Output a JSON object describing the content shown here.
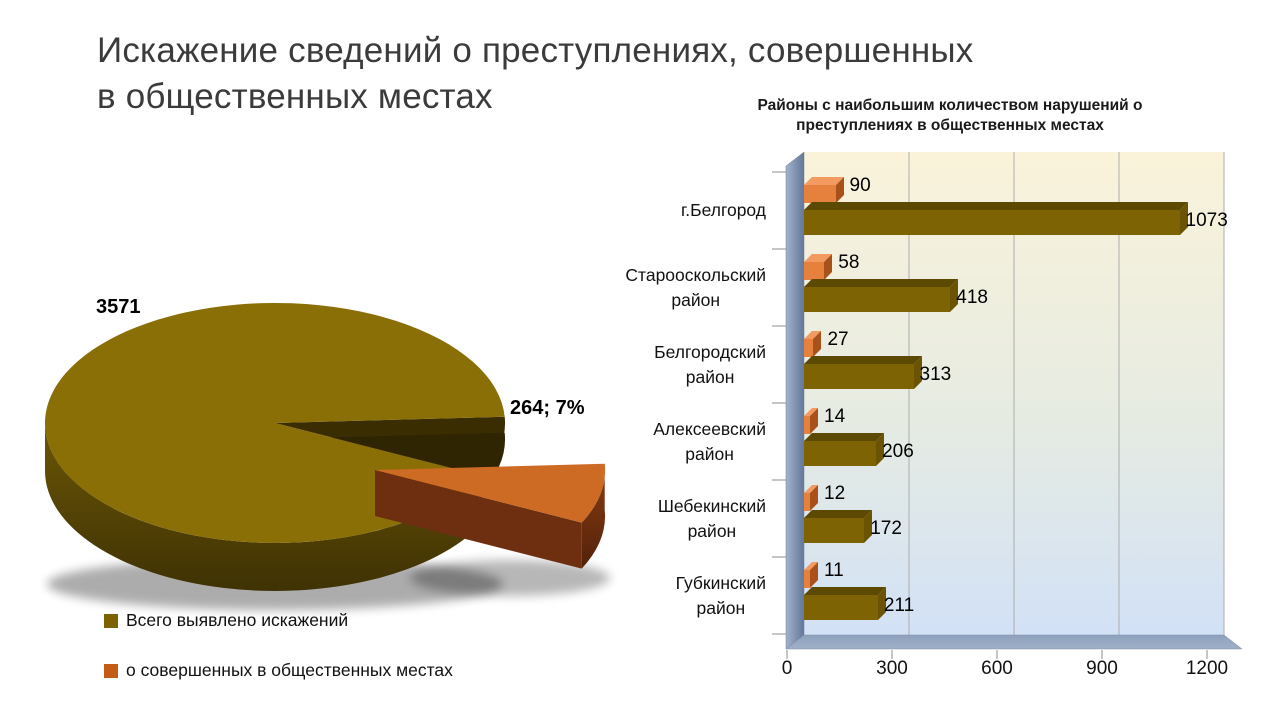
{
  "slide": {
    "title_line1": "Искажение сведений о преступлениях, совершенных",
    "title_line2": "в общественных местах"
  },
  "pie": {
    "label_total": "3571",
    "label_slice": "264; 7%",
    "legend": [
      {
        "label": "Всего выявлено искажений",
        "color": "#7d6203"
      },
      {
        "label": "о совершенных в общественных местах",
        "color": "#c45c18"
      }
    ]
  },
  "bar_chart": {
    "title_line1": "Районы с наибольшим количеством нарушений  о",
    "title_line2": "преступлениях в общественных местах",
    "categories_lines": [
      [
        "г.Белгород"
      ],
      [
        "Старооскольский",
        "район"
      ],
      [
        "Белгородский",
        "район"
      ],
      [
        "Алексеевский",
        "район"
      ],
      [
        "Шебекинский",
        "район"
      ],
      [
        "Губкинский",
        "район"
      ]
    ]
  },
  "colors": {
    "pie_main_top": "#8a6e06",
    "pie_main_side": "#4f4005",
    "pie_slice_top": "#cd6a23",
    "pie_slice_side": "#6e2f10",
    "bar_olive": "#7d6303",
    "bar_orange": "#e5813c",
    "plot_bg_top": "#faf3da",
    "plot_bg_bottom": "#d2e1f6",
    "wall": "#8094b3",
    "gridline": "#adadad"
  },
  "chart_data": [
    {
      "type": "pie",
      "legend_entries": [
        "Всего выявлено искажений",
        "о совершенных в общественных местах"
      ],
      "values": [
        3571,
        264
      ],
      "data_labels": [
        "3571",
        "264; 7%"
      ],
      "colors": [
        "#8a6e06",
        "#cd6a23"
      ],
      "note": "3D exploded pie; slice 264 = 7%"
    },
    {
      "type": "bar",
      "title": "Районы с наибольшим количеством нарушений  о преступлениях в общественных местах",
      "orientation": "horizontal",
      "categories": [
        "г.Белгород",
        "Старооскольский район",
        "Белгородский район",
        "Алексеевский район",
        "Шебекинский район",
        "Губкинский район"
      ],
      "series": [
        {
          "name": "о совершенных в общественных местах",
          "color": "#e5813c",
          "values": [
            90,
            58,
            27,
            14,
            12,
            11
          ]
        },
        {
          "name": "Всего выявлено искажений",
          "color": "#7d6303",
          "values": [
            1073,
            418,
            313,
            206,
            172,
            211
          ]
        }
      ],
      "xlim": [
        0,
        1200
      ],
      "xticks": [
        "0",
        "300",
        "600",
        "900",
        "1200"
      ],
      "grid": true,
      "legend_position": "none"
    }
  ]
}
